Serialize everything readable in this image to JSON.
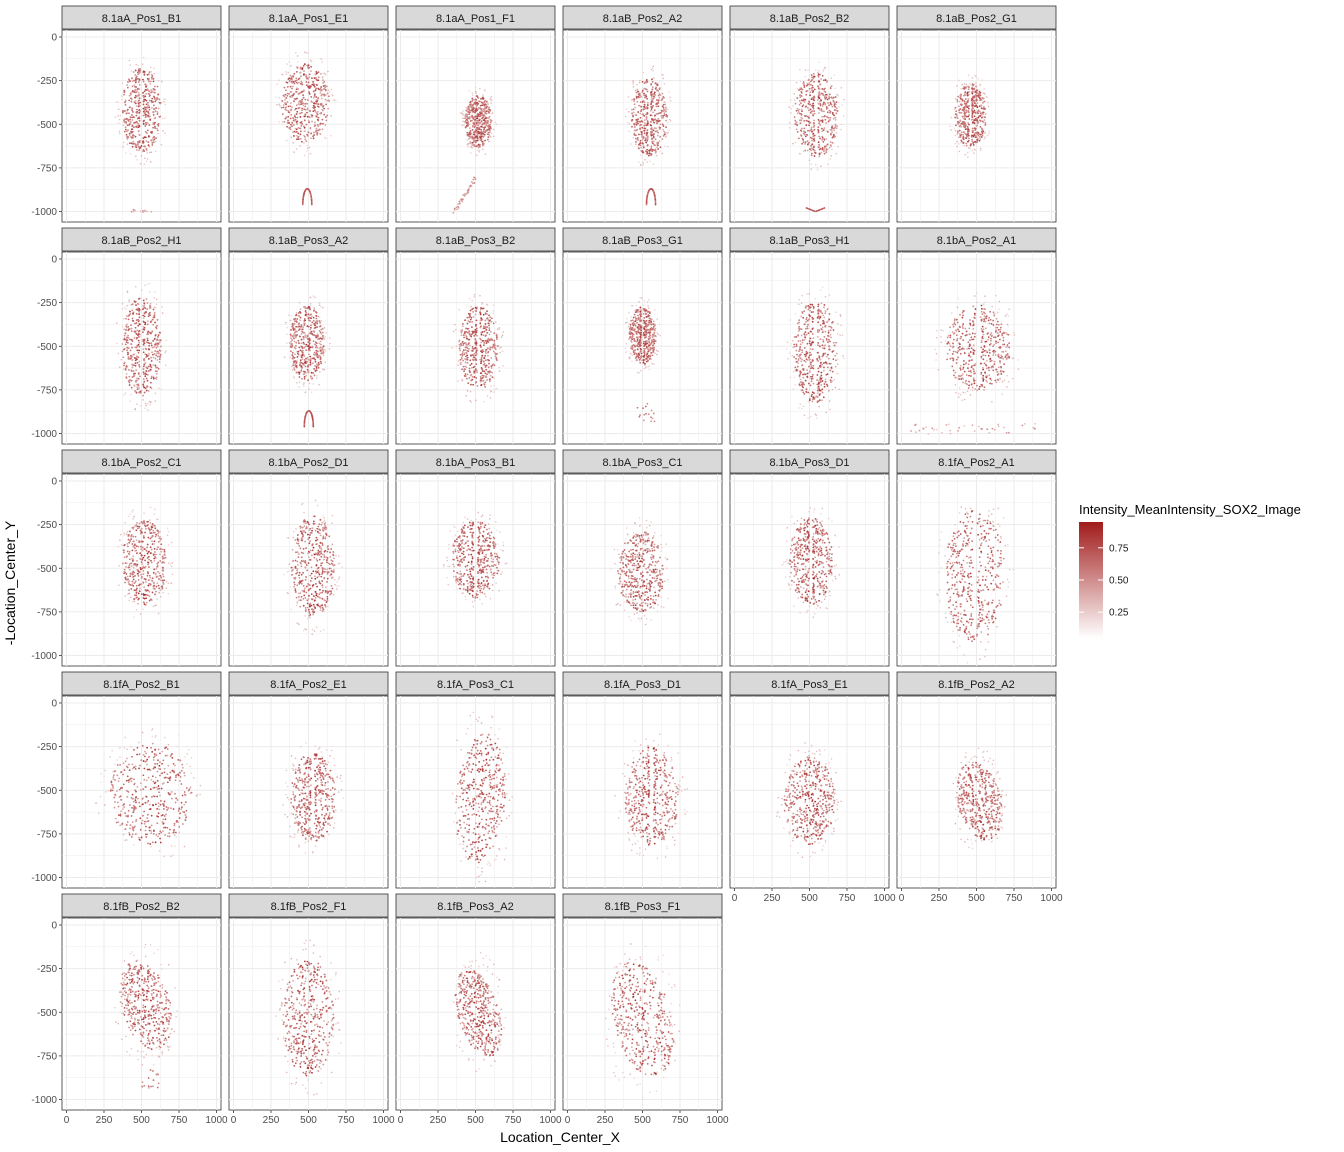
{
  "chart_data": {
    "type": "scatter",
    "facet_layout": "6 columns, wrapped",
    "xlabel": "Location_Center_X",
    "ylabel": "-Location_Center_Y",
    "xlim": [
      -30,
      1030
    ],
    "ylim": [
      -1060,
      40
    ],
    "x_ticks": [
      0,
      250,
      500,
      750,
      1000
    ],
    "y_ticks": [
      0,
      -250,
      -500,
      -750,
      -1000
    ],
    "x_tick_labels": [
      "0",
      "250",
      "500",
      "750",
      "1000"
    ],
    "y_tick_labels": [
      "0",
      "-250",
      "-500",
      "-750",
      "-1000"
    ],
    "grid": true,
    "legend": {
      "title": "Intensity_MeanIntensity_SOX2_Image",
      "placement": "right",
      "low_color": "#ffffff",
      "high_color": "#a11b1b",
      "limits": [
        0.05,
        0.95
      ],
      "breaks": [
        0.25,
        0.5,
        0.75
      ],
      "break_labels": [
        "0.25",
        "0.50",
        "0.75"
      ]
    },
    "facets": [
      {
        "label": "8.1aA_Pos1_B1",
        "cx": 500,
        "cy": -420,
        "rx": 130,
        "ry": 240,
        "tilt": 0,
        "gap": true,
        "tail": "bottom-spot"
      },
      {
        "label": "8.1aA_Pos1_E1",
        "cx": 480,
        "cy": -380,
        "rx": 160,
        "ry": 225,
        "tilt": 0,
        "gap": false,
        "tail": "loop"
      },
      {
        "label": "8.1aA_Pos1_F1",
        "cx": 520,
        "cy": -485,
        "rx": 90,
        "ry": 150,
        "tilt": 0,
        "gap": false,
        "tail": "arc"
      },
      {
        "label": "8.1aB_Pos2_A2",
        "cx": 545,
        "cy": -460,
        "rx": 120,
        "ry": 220,
        "tilt": 0,
        "gap": true,
        "tail": "loop"
      },
      {
        "label": "8.1aB_Pos2_B2",
        "cx": 545,
        "cy": -450,
        "rx": 145,
        "ry": 240,
        "tilt": 0,
        "gap": true,
        "tail": "bottom-v"
      },
      {
        "label": "8.1aB_Pos2_G1",
        "cx": 460,
        "cy": -450,
        "rx": 105,
        "ry": 180,
        "tilt": 0,
        "gap": true,
        "tail": "none"
      },
      {
        "label": "8.1aB_Pos2_H1",
        "cx": 500,
        "cy": -500,
        "rx": 130,
        "ry": 285,
        "tilt": 0,
        "gap": true,
        "tail": "none"
      },
      {
        "label": "8.1aB_Pos3_A2",
        "cx": 490,
        "cy": -485,
        "rx": 115,
        "ry": 215,
        "tilt": 0,
        "gap": false,
        "tail": "loop"
      },
      {
        "label": "8.1aB_Pos3_B2",
        "cx": 520,
        "cy": -510,
        "rx": 130,
        "ry": 240,
        "tilt": 0,
        "gap": true,
        "tail": "none"
      },
      {
        "label": "8.1aB_Pos3_G1",
        "cx": 500,
        "cy": -440,
        "rx": 90,
        "ry": 165,
        "tilt": 0,
        "gap": true,
        "tail": "spot-low"
      },
      {
        "label": "8.1aB_Pos3_H1",
        "cx": 540,
        "cy": -530,
        "rx": 145,
        "ry": 295,
        "tilt": 0,
        "gap": true,
        "tail": "none"
      },
      {
        "label": "8.1bA_Pos2_A1",
        "cx": 510,
        "cy": -510,
        "rx": 215,
        "ry": 245,
        "tilt": 0,
        "gap": true,
        "tail": "scatter-bottom"
      },
      {
        "label": "8.1bA_Pos2_C1",
        "cx": 520,
        "cy": -470,
        "rx": 150,
        "ry": 245,
        "tilt": 0,
        "gap": false,
        "tail": "none"
      },
      {
        "label": "8.1bA_Pos2_D1",
        "cx": 530,
        "cy": -490,
        "rx": 145,
        "ry": 290,
        "tilt": 0,
        "gap": false,
        "tail": "none"
      },
      {
        "label": "8.1bA_Pos3_B1",
        "cx": 500,
        "cy": -450,
        "rx": 160,
        "ry": 220,
        "tilt": 0,
        "gap": true,
        "tail": "none"
      },
      {
        "label": "8.1bA_Pos3_C1",
        "cx": 490,
        "cy": -520,
        "rx": 155,
        "ry": 230,
        "tilt": 0,
        "gap": false,
        "tail": "none"
      },
      {
        "label": "8.1bA_Pos3_D1",
        "cx": 510,
        "cy": -460,
        "rx": 145,
        "ry": 250,
        "tilt": 0,
        "gap": true,
        "tail": "none"
      },
      {
        "label": "8.1fA_Pos2_A1",
        "cx": 490,
        "cy": -545,
        "rx": 200,
        "ry": 375,
        "tilt": 0,
        "gap": true,
        "tail": "none"
      },
      {
        "label": "8.1fA_Pos2_B1",
        "cx": 560,
        "cy": -520,
        "rx": 275,
        "ry": 290,
        "tilt": 0,
        "gap": false,
        "tail": "none"
      },
      {
        "label": "8.1fA_Pos2_E1",
        "cx": 530,
        "cy": -540,
        "rx": 150,
        "ry": 255,
        "tilt": 0,
        "gap": true,
        "tail": "none"
      },
      {
        "label": "8.1fA_Pos3_C1",
        "cx": 535,
        "cy": -545,
        "rx": 165,
        "ry": 375,
        "tilt": -0.12,
        "gap": false,
        "tail": "none"
      },
      {
        "label": "8.1fA_Pos3_D1",
        "cx": 560,
        "cy": -535,
        "rx": 180,
        "ry": 280,
        "tilt": 0,
        "gap": true,
        "tail": "none"
      },
      {
        "label": "8.1fA_Pos3_E1",
        "cx": 500,
        "cy": -560,
        "rx": 170,
        "ry": 250,
        "tilt": 0,
        "gap": false,
        "tail": "none"
      },
      {
        "label": "8.1fB_Pos2_A2",
        "cx": 520,
        "cy": -560,
        "rx": 145,
        "ry": 230,
        "tilt": 0.3,
        "gap": true,
        "tail": "none"
      },
      {
        "label": "8.1fB_Pos2_B2",
        "cx": 530,
        "cy": -460,
        "rx": 160,
        "ry": 265,
        "tilt": 0.35,
        "gap": false,
        "tail": "spot-low"
      },
      {
        "label": "8.1fB_Pos2_F1",
        "cx": 500,
        "cy": -530,
        "rx": 170,
        "ry": 335,
        "tilt": 0,
        "gap": false,
        "tail": "none"
      },
      {
        "label": "8.1fB_Pos3_A2",
        "cx": 520,
        "cy": -505,
        "rx": 135,
        "ry": 260,
        "tilt": 0.35,
        "gap": false,
        "tail": "none"
      },
      {
        "label": "8.1fB_Pos3_F1",
        "cx": 500,
        "cy": -540,
        "rx": 190,
        "ry": 340,
        "tilt": 0.3,
        "gap": false,
        "tail": "none"
      }
    ]
  }
}
